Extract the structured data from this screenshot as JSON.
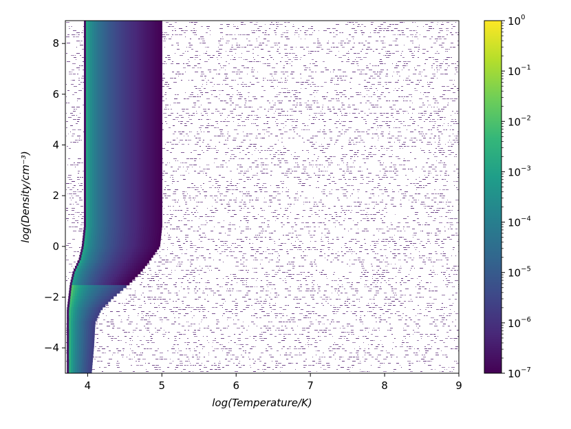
{
  "chart_data": {
    "type": "heatmap",
    "title": "",
    "xlabel": "log(Temperature/K)",
    "ylabel": "log(Density/cm⁻³)",
    "xlim": [
      3.7,
      9.0
    ],
    "ylim": [
      -5.0,
      8.9
    ],
    "x_ticks": [
      4,
      5,
      6,
      7,
      8,
      9
    ],
    "y_ticks": [
      -4,
      -2,
      0,
      2,
      4,
      6,
      8
    ],
    "x_tick_labels": [
      "4",
      "5",
      "6",
      "7",
      "8",
      "9"
    ],
    "y_tick_labels": [
      "−4",
      "−2",
      "0",
      "2",
      "4",
      "6",
      "8"
    ],
    "grid": false,
    "colormap": "viridis",
    "color_scale": "log",
    "colorbar": {
      "range": [
        1e-07,
        1
      ],
      "ticks": [
        {
          "value": 1e-07,
          "base": "10",
          "exp": "−7"
        },
        {
          "value": 1e-06,
          "base": "10",
          "exp": "−6"
        },
        {
          "value": 1e-05,
          "base": "10",
          "exp": "−5"
        },
        {
          "value": 0.0001,
          "base": "10",
          "exp": "−4"
        },
        {
          "value": 0.001,
          "base": "10",
          "exp": "−3"
        },
        {
          "value": 0.01,
          "base": "10",
          "exp": "−2"
        },
        {
          "value": 0.1,
          "base": "10",
          "exp": "−1"
        },
        {
          "value": 1,
          "base": "10",
          "exp": "0"
        }
      ]
    },
    "boundary": [
      {
        "logrho": 8.9,
        "logT_min": 3.95,
        "logT_max": 5.0
      },
      {
        "logrho": 0.8,
        "logT_min": 3.95,
        "logT_max": 5.0
      },
      {
        "logrho": 0.0,
        "logT_min": 3.92,
        "logT_max": 4.97
      },
      {
        "logrho": -0.5,
        "logT_min": 3.88,
        "logT_max": 4.85
      },
      {
        "logrho": -1.0,
        "logT_min": 3.8,
        "logT_max": 4.72
      },
      {
        "logrho": -1.5,
        "logT_min": 3.76,
        "logT_max": 4.55
      },
      {
        "logrho": -2.0,
        "logT_min": 3.74,
        "logT_max": 4.35
      },
      {
        "logrho": -2.5,
        "logT_min": 3.72,
        "logT_max": 4.18
      },
      {
        "logrho": -3.0,
        "logT_min": 3.72,
        "logT_max": 4.1
      },
      {
        "logrho": -4.0,
        "logT_min": 3.72,
        "logT_max": 4.08
      },
      {
        "logrho": -5.0,
        "logT_min": 3.72,
        "logT_max": 4.05
      }
    ],
    "value_model": "log10(value) ≈ 0 at the cold edge, decreasing to about −7 toward the hot edge"
  },
  "colors": {
    "viridis": [
      "#440154",
      "#482878",
      "#3e4989",
      "#31688e",
      "#26828e",
      "#1f9e89",
      "#35b779",
      "#6ece58",
      "#b5de2b",
      "#fde725"
    ],
    "speckle": "#5a2a76"
  }
}
